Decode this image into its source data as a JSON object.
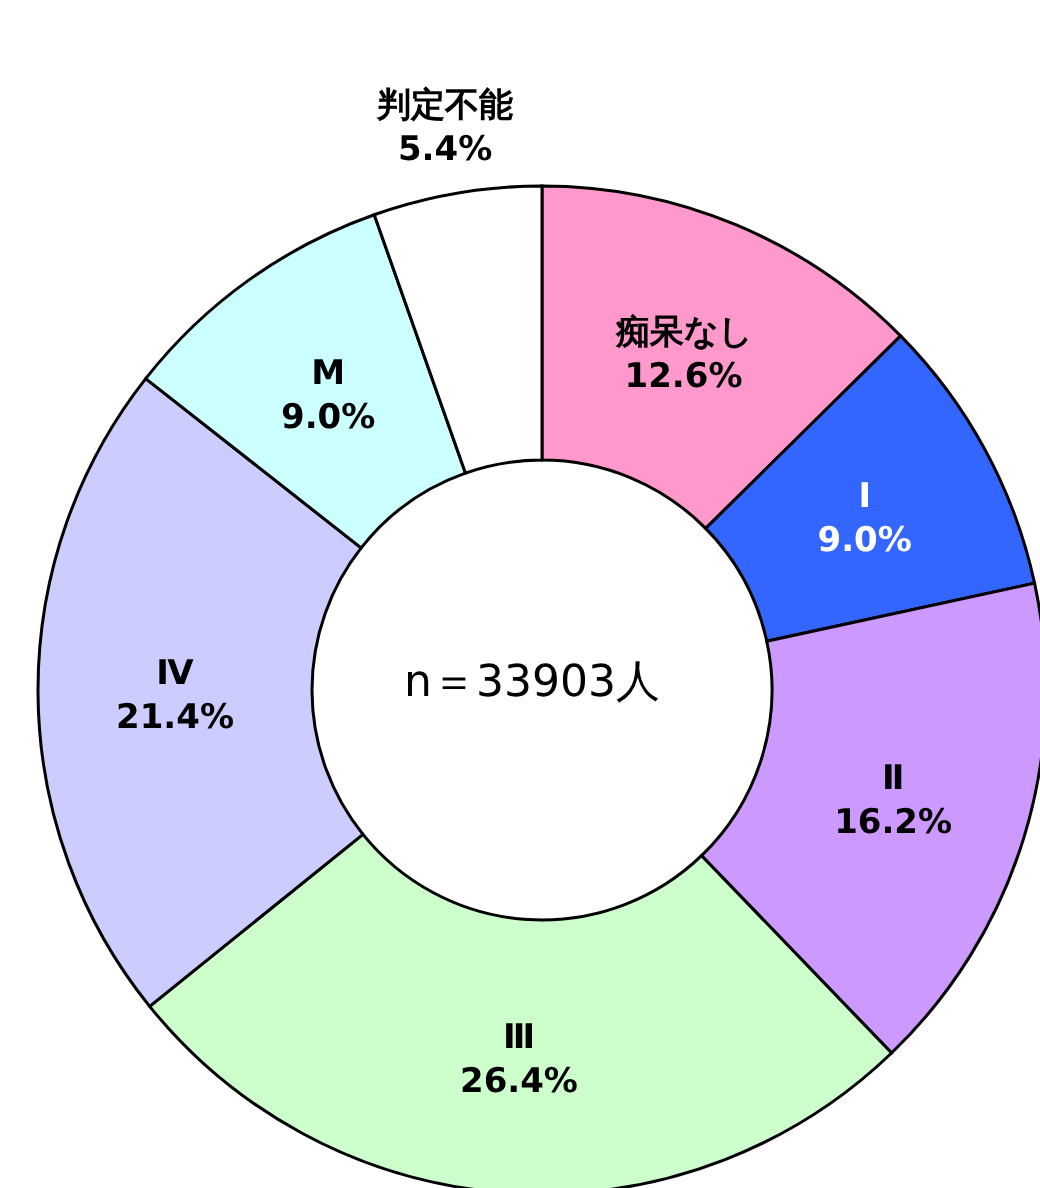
{
  "chart_data": {
    "type": "donut",
    "categories": [
      "痴呆なし",
      "Ⅰ",
      "Ⅱ",
      "Ⅲ",
      "Ⅳ",
      "M",
      "判定不能"
    ],
    "values": [
      12.6,
      9.0,
      16.2,
      26.4,
      21.4,
      9.0,
      5.4
    ],
    "value_labels": [
      "12.6%",
      "9.0%",
      "16.2%",
      "26.4%",
      "21.4%",
      "9.0%",
      "5.4%"
    ],
    "colors": [
      "#ff99cc",
      "#3366ff",
      "#cc99ff",
      "#ccffcc",
      "#ccccff",
      "#ccffff",
      "#ffffff"
    ],
    "annotations": [
      "n＝33903人"
    ],
    "legend": false
  }
}
